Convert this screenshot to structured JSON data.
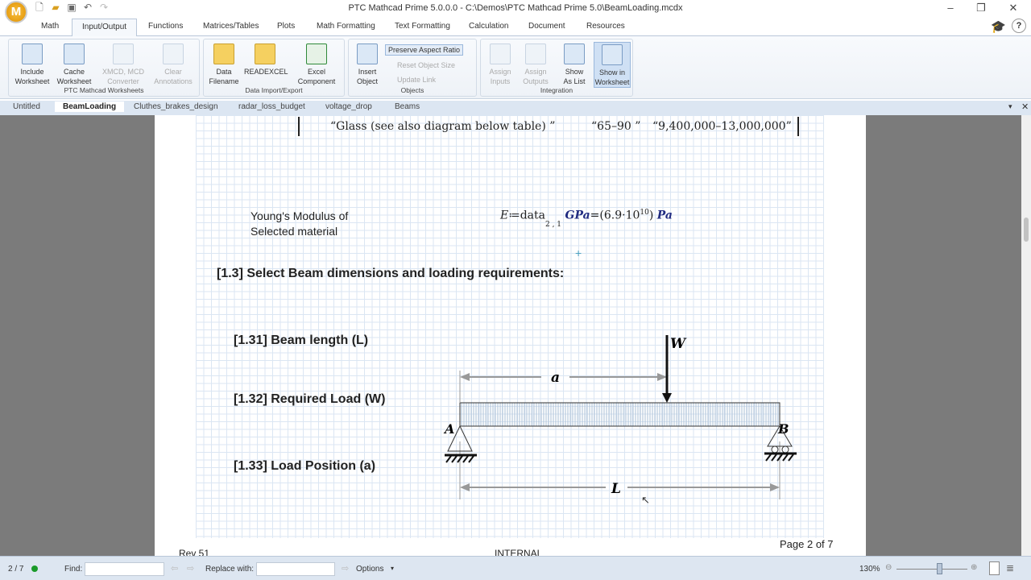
{
  "app": {
    "title": "PTC Mathcad Prime 5.0.0.0 - C:\\Demos\\PTC Mathcad Prime 5.0\\BeamLoading.mcdx",
    "logo": "M"
  },
  "ribbon_tabs": [
    "Math",
    "Input/Output",
    "Functions",
    "Matrices/Tables",
    "Plots",
    "Math Formatting",
    "Text Formatting",
    "Calculation",
    "Document",
    "Resources"
  ],
  "active_ribbon_tab": "Input/Output",
  "ribbon": {
    "groups": [
      {
        "label": "PTC Mathcad Worksheets",
        "buttons": [
          {
            "l1": "Include",
            "l2": "Worksheet"
          },
          {
            "l1": "Cache",
            "l2": "Worksheet"
          },
          {
            "l1": "XMCD, MCD",
            "l2": "Converter"
          },
          {
            "l1": "Clear",
            "l2": "Annotations"
          }
        ]
      },
      {
        "label": "Data Import/Export",
        "buttons": [
          {
            "l1": "Data",
            "l2": "Filename"
          },
          {
            "l1": "READEXCEL",
            "l2": ""
          },
          {
            "l1": "Excel",
            "l2": "Component"
          }
        ]
      },
      {
        "label": "Objects",
        "buttons": [
          {
            "l1": "Insert",
            "l2": "Object"
          }
        ],
        "small": [
          "Preserve Aspect Ratio",
          "Reset Object Size",
          "Update Link"
        ]
      },
      {
        "label": "Integration",
        "buttons": [
          {
            "l1": "Assign",
            "l2": "Inputs"
          },
          {
            "l1": "Assign",
            "l2": "Outputs"
          },
          {
            "l1": "Show",
            "l2": "As List"
          },
          {
            "l1": "Show in",
            "l2": "Worksheet"
          }
        ]
      }
    ]
  },
  "doc_tabs": [
    "Untitled",
    "BeamLoading",
    "Cluthes_brakes_design",
    "radar_loss_budget",
    "voltage_drop",
    "Beams"
  ],
  "active_doc_tab": "BeamLoading",
  "worksheet": {
    "table_row": {
      "c1": "“Glass (see also diagram below table) ”",
      "c2": "“65–90 ”",
      "c3": "“9,400,000–13,000,000”"
    },
    "youngs_label_1": "Young's Modulus of",
    "youngs_label_2": "Selected material",
    "eq": {
      "lhs": "E",
      "assign": "≔",
      "fn": "data",
      "sub": "2 , 1",
      "unit": "GPa",
      "eq": "=",
      "result": "(6.9·10",
      "exp": "10",
      "close": ")",
      "result_unit": "Pa"
    },
    "heading": "[1.3] Select Beam dimensions and loading requirements:",
    "items": [
      "[1.31] Beam length (L)",
      "[1.32] Required Load (W)",
      "[1.33] Load Position (a)"
    ],
    "diagram": {
      "load": "W",
      "dist_a": "a",
      "length": "L",
      "support_a": "A",
      "support_b": "B"
    },
    "footer": {
      "rev": "Rev 51",
      "center": "INTERNAL",
      "page": "Page 2 of 7"
    }
  },
  "status": {
    "pages": "2 / 7",
    "find_label": "Find:",
    "find_value": "",
    "replace_label": "Replace with:",
    "replace_value": "",
    "options": "Options",
    "zoom": "130%",
    "zoom_level": 0.6
  }
}
